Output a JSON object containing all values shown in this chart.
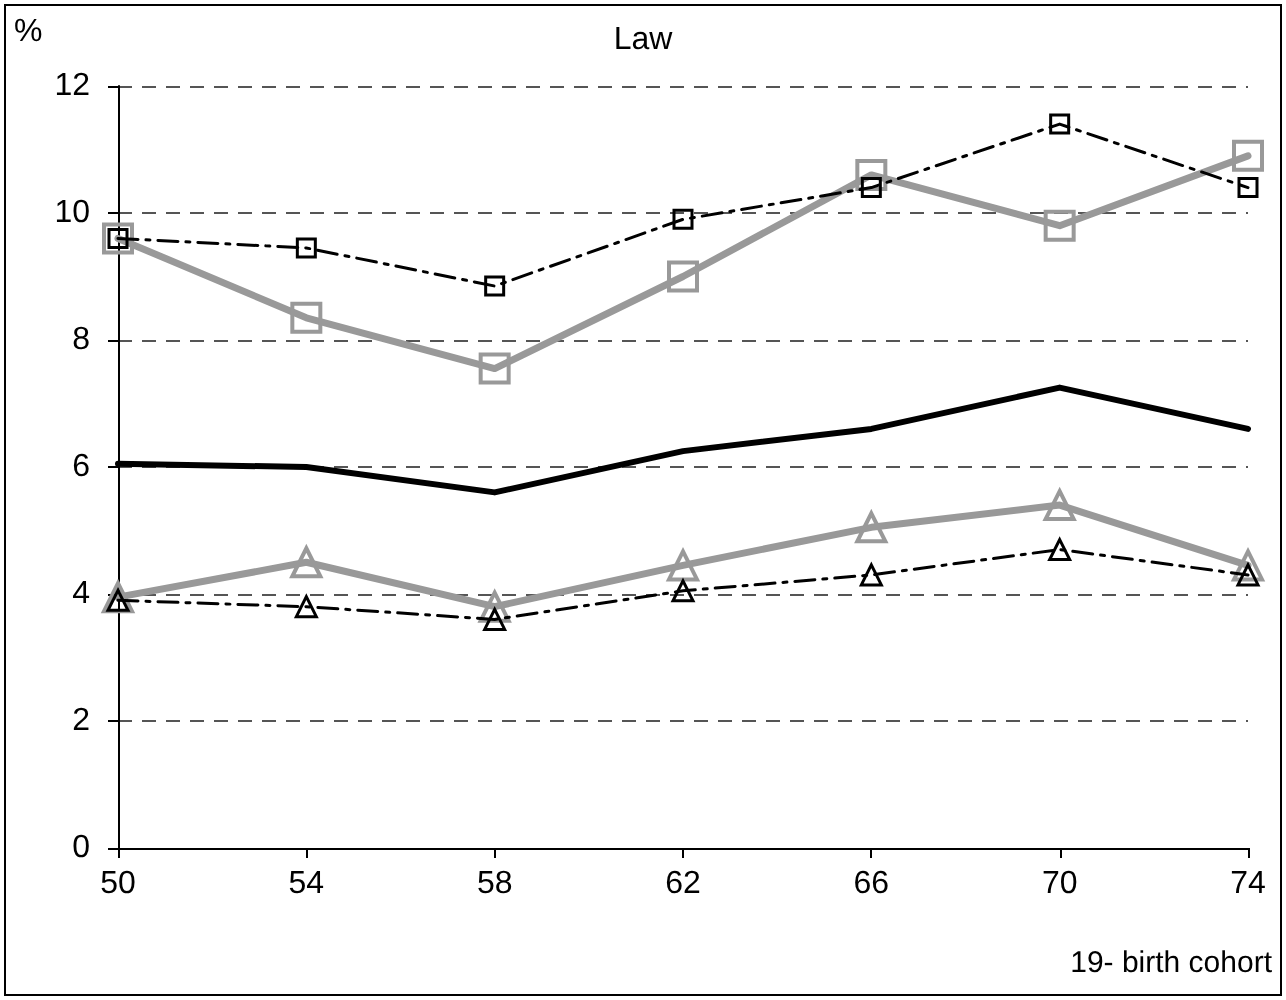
{
  "chart_data": {
    "type": "line",
    "title": "Law",
    "ylabel": "%",
    "xlabel": "19- birth cohort",
    "x": [
      50,
      54,
      58,
      62,
      66,
      70,
      74
    ],
    "xlim": [
      50,
      74
    ],
    "xticks": [
      50,
      54,
      58,
      62,
      66,
      70,
      74
    ],
    "ylim": [
      0,
      12
    ],
    "yticks": [
      0,
      2,
      4,
      6,
      8,
      10,
      12
    ],
    "grid": "y",
    "series": [
      {
        "color": "#000000",
        "marker": "square",
        "line_style": "dashed",
        "values": [
          9.6,
          9.45,
          8.85,
          9.9,
          10.4,
          11.4,
          10.4
        ]
      },
      {
        "color": "#999999",
        "marker": "square",
        "line_style": "solid",
        "values": [
          9.6,
          8.35,
          7.55,
          9.0,
          10.6,
          9.8,
          10.9
        ]
      },
      {
        "color": "#000000",
        "marker": "none",
        "line_style": "solid",
        "values": [
          6.05,
          6.0,
          5.6,
          6.25,
          6.6,
          7.25,
          6.6
        ]
      },
      {
        "color": "#999999",
        "marker": "triangle",
        "line_style": "solid",
        "values": [
          3.95,
          4.5,
          3.8,
          4.45,
          5.05,
          5.4,
          4.45
        ]
      },
      {
        "color": "#000000",
        "marker": "triangle",
        "line_style": "dashed",
        "values": [
          3.9,
          3.8,
          3.6,
          4.05,
          4.3,
          4.7,
          4.3
        ]
      }
    ]
  }
}
